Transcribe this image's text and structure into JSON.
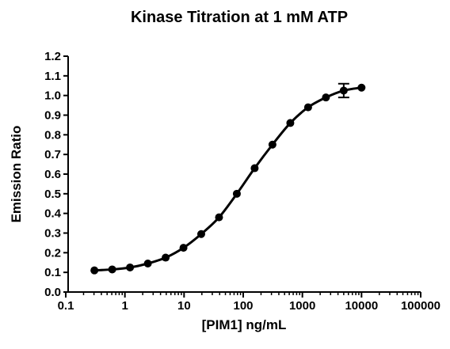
{
  "chart_data": {
    "type": "scatter",
    "title": "Kinase Titration at 1 mM ATP",
    "x_label": "[PIM1] ng/mL",
    "y_label": "Emission Ratio",
    "log_x": true,
    "xlim": [
      0.1,
      100000
    ],
    "xticks": [
      0.1,
      1,
      10,
      100,
      1000,
      10000,
      100000
    ],
    "ylim": [
      0,
      1.2
    ],
    "yticks": [
      {
        "value": 0,
        "label": "0.0"
      },
      0.1,
      0.2,
      0.3,
      0.4,
      0.5,
      0.6,
      0.7,
      0.8,
      0.9,
      {
        "value": 1,
        "label": "1.0"
      },
      1.1,
      1.2
    ],
    "series": [
      {
        "color": "#000000",
        "x": [
          0.305,
          0.61,
          1.22,
          2.44,
          4.88,
          9.77,
          19.5,
          39,
          78,
          156,
          312,
          625,
          1250,
          2500,
          5000,
          10000
        ],
        "values": [
          0.11,
          0.115,
          0.125,
          0.145,
          0.175,
          0.225,
          0.295,
          0.38,
          0.5,
          0.63,
          0.75,
          0.86,
          0.94,
          0.99,
          1.025,
          1.04
        ],
        "errors": [
          null,
          null,
          null,
          null,
          null,
          null,
          null,
          null,
          null,
          null,
          null,
          null,
          null,
          null,
          0.035,
          null
        ]
      }
    ]
  }
}
